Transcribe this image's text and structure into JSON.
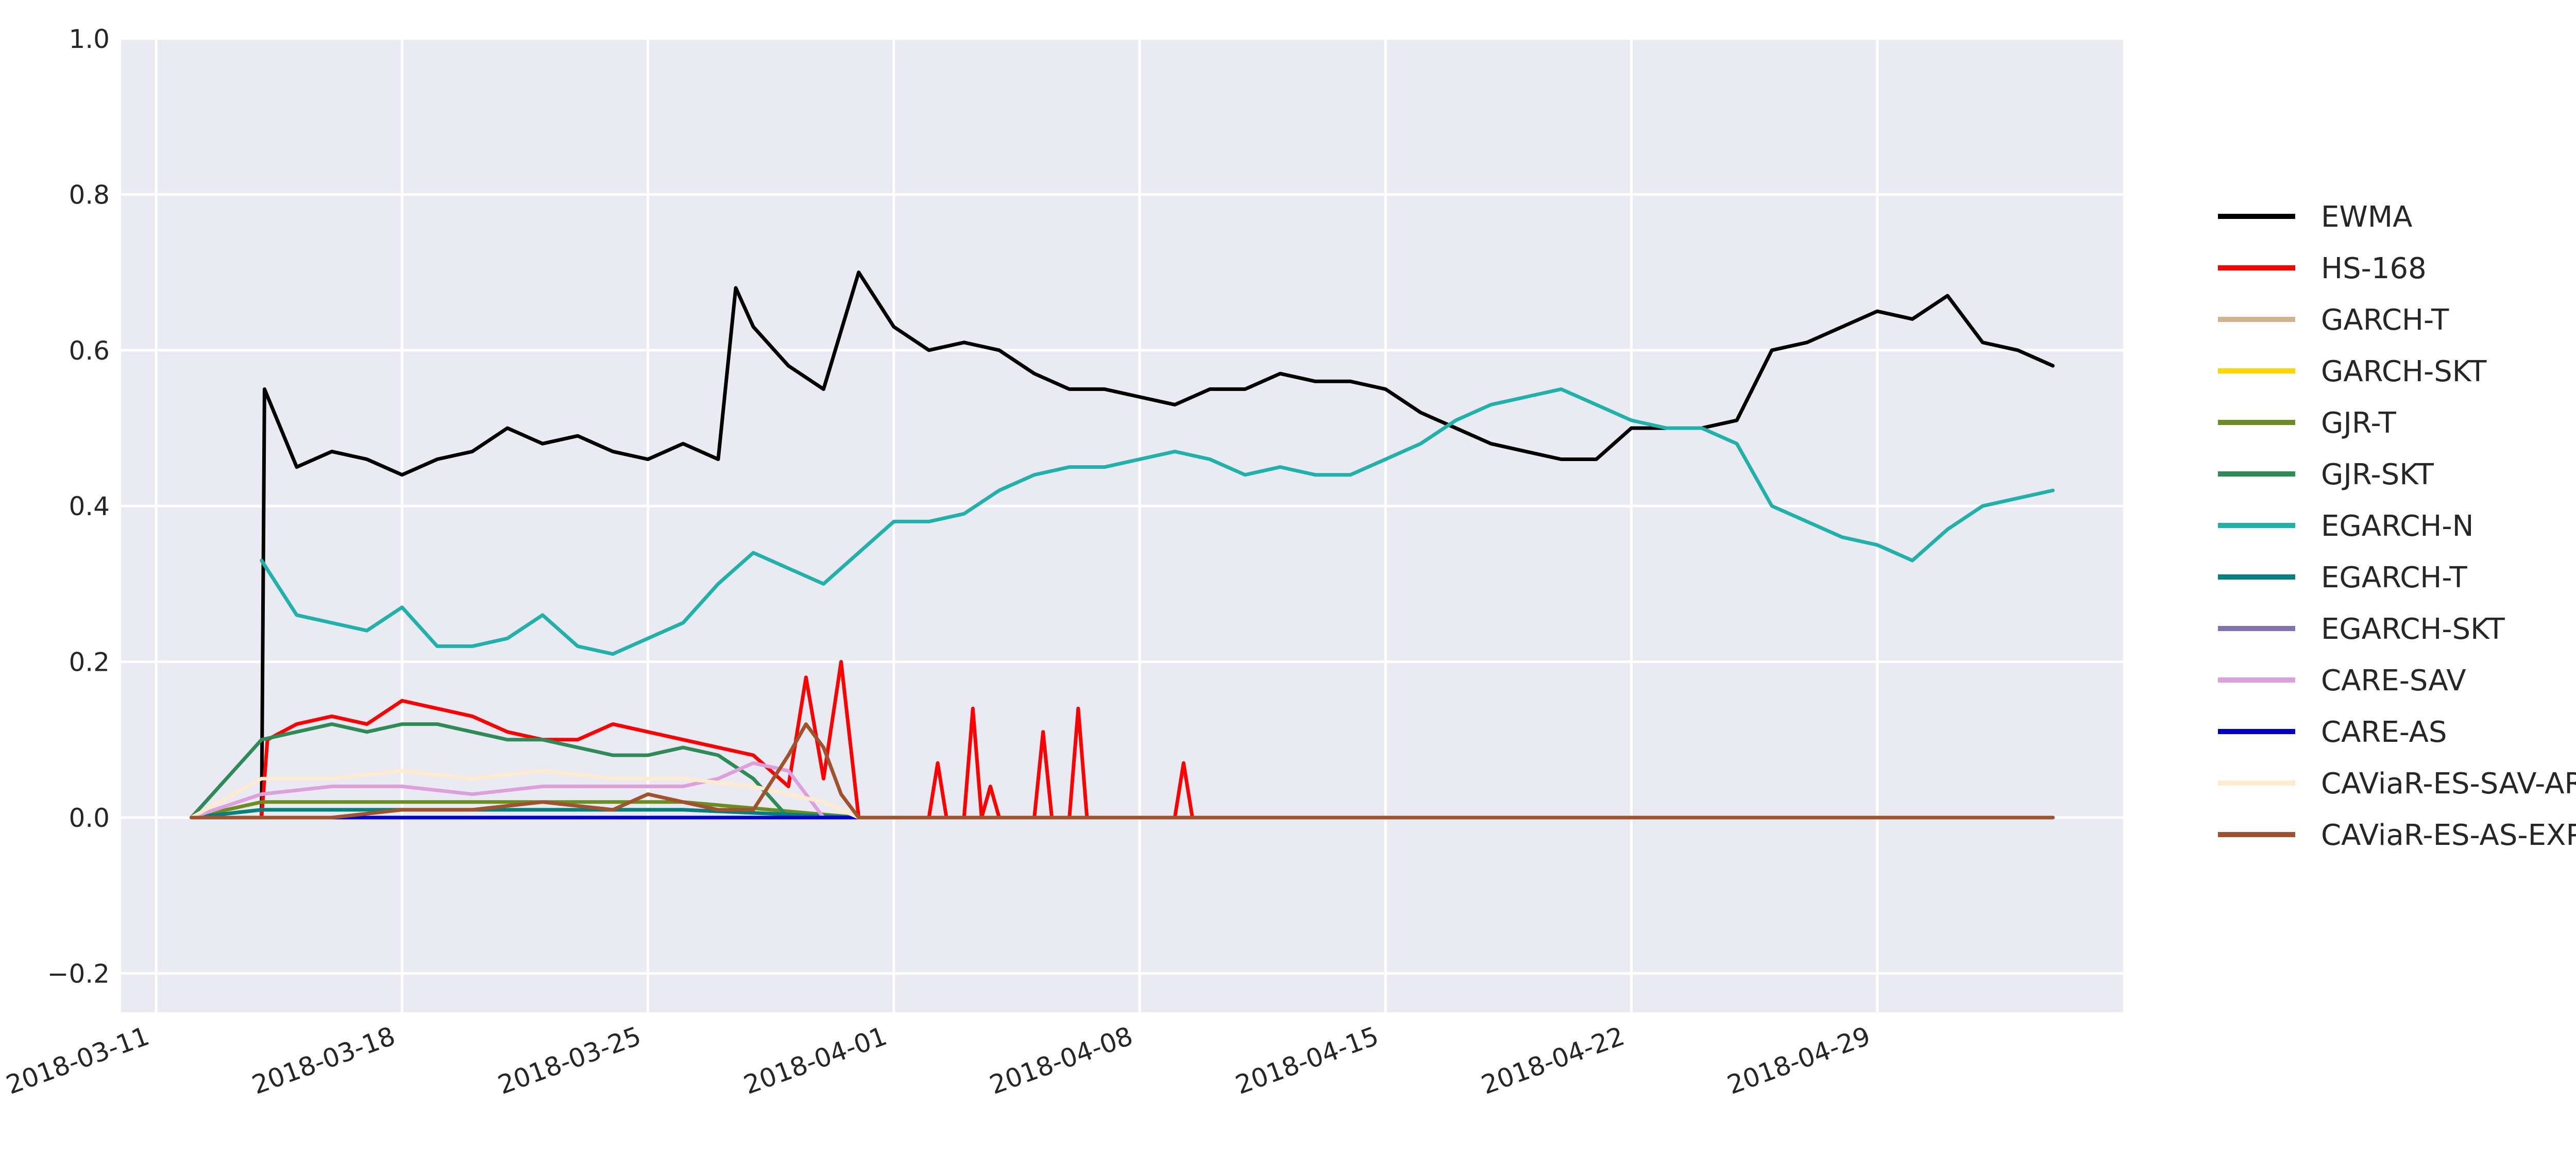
{
  "chart_data": {
    "type": "line",
    "title": "",
    "xlabel": "",
    "ylabel": "",
    "x_axis_type": "date",
    "xlim": [
      "2018-03-10",
      "2018-05-06"
    ],
    "ylim": [
      -0.25,
      1.0
    ],
    "x_ticks": [
      "2018-03-11",
      "2018-03-18",
      "2018-03-25",
      "2018-04-01",
      "2018-04-08",
      "2018-04-15",
      "2018-04-22",
      "2018-04-29"
    ],
    "y_ticks": [
      -0.2,
      0.0,
      0.2,
      0.4,
      0.6,
      0.8,
      1.0
    ],
    "y_tick_labels": [
      "−0.2",
      "0.0",
      "0.2",
      "0.4",
      "0.6",
      "0.8",
      "1.0"
    ],
    "grid": true,
    "background": "#eaeaf2",
    "legend_position": "right",
    "series": [
      {
        "name": "EWMA",
        "color": "#000000",
        "x": [
          "2018-03-12",
          "2018-03-14",
          "2018-03-14 02:00",
          "2018-03-15",
          "2018-03-16",
          "2018-03-17",
          "2018-03-18",
          "2018-03-19",
          "2018-03-20",
          "2018-03-21",
          "2018-03-22",
          "2018-03-23",
          "2018-03-24",
          "2018-03-25",
          "2018-03-26",
          "2018-03-27",
          "2018-03-27 12:00",
          "2018-03-28",
          "2018-03-29",
          "2018-03-30",
          "2018-03-31",
          "2018-04-01",
          "2018-04-02",
          "2018-04-03",
          "2018-04-04",
          "2018-04-05",
          "2018-04-06",
          "2018-04-07",
          "2018-04-08",
          "2018-04-09",
          "2018-04-10",
          "2018-04-11",
          "2018-04-12",
          "2018-04-13",
          "2018-04-14",
          "2018-04-15",
          "2018-04-16",
          "2018-04-17",
          "2018-04-18",
          "2018-04-19",
          "2018-04-20",
          "2018-04-21",
          "2018-04-22",
          "2018-04-23",
          "2018-04-24",
          "2018-04-25",
          "2018-04-26",
          "2018-04-27",
          "2018-04-28",
          "2018-04-29",
          "2018-04-30",
          "2018-05-01",
          "2018-05-02",
          "2018-05-03",
          "2018-05-04"
        ],
        "y": [
          0.0,
          0.0,
          0.55,
          0.45,
          0.47,
          0.46,
          0.44,
          0.46,
          0.47,
          0.5,
          0.48,
          0.49,
          0.47,
          0.46,
          0.48,
          0.46,
          0.68,
          0.63,
          0.58,
          0.55,
          0.7,
          0.63,
          0.6,
          0.61,
          0.6,
          0.57,
          0.55,
          0.55,
          0.54,
          0.53,
          0.55,
          0.55,
          0.57,
          0.56,
          0.56,
          0.55,
          0.52,
          0.5,
          0.48,
          0.47,
          0.46,
          0.46,
          0.5,
          0.5,
          0.5,
          0.51,
          0.6,
          0.61,
          0.63,
          0.65,
          0.64,
          0.67,
          0.61,
          0.6,
          0.58
        ]
      },
      {
        "name": "HS-168",
        "color": "#ff0000",
        "x": [
          "2018-03-12",
          "2018-03-14",
          "2018-03-14 04:00",
          "2018-03-15",
          "2018-03-16",
          "2018-03-17",
          "2018-03-18",
          "2018-03-19",
          "2018-03-20",
          "2018-03-21",
          "2018-03-22",
          "2018-03-23",
          "2018-03-24",
          "2018-03-25",
          "2018-03-26",
          "2018-03-27",
          "2018-03-28",
          "2018-03-29",
          "2018-03-29 12:00",
          "2018-03-30",
          "2018-03-30 12:00",
          "2018-03-31",
          "2018-04-02",
          "2018-04-02 06:00",
          "2018-04-02 12:00",
          "2018-04-03",
          "2018-04-03 06:00",
          "2018-04-03 12:00",
          "2018-04-03 18:00",
          "2018-04-04",
          "2018-04-04 12:00",
          "2018-04-05",
          "2018-04-05 06:00",
          "2018-04-05 12:00",
          "2018-04-06",
          "2018-04-06 06:00",
          "2018-04-06 12:00",
          "2018-04-09",
          "2018-04-09 06:00",
          "2018-04-09 12:00",
          "2018-05-04"
        ],
        "y": [
          0.0,
          0.0,
          0.1,
          0.12,
          0.13,
          0.12,
          0.15,
          0.14,
          0.13,
          0.11,
          0.1,
          0.1,
          0.12,
          0.11,
          0.1,
          0.09,
          0.08,
          0.04,
          0.18,
          0.05,
          0.2,
          0.0,
          0.0,
          0.07,
          0.0,
          0.0,
          0.14,
          0.0,
          0.04,
          0.0,
          0.0,
          0.0,
          0.11,
          0.0,
          0.0,
          0.14,
          0.0,
          0.0,
          0.07,
          0.0,
          0.0
        ]
      },
      {
        "name": "GARCH-T",
        "color": "#d2b48c",
        "x": [
          "2018-03-12",
          "2018-03-14",
          "2018-03-20",
          "2018-03-26",
          "2018-03-31",
          "2018-05-04"
        ],
        "y": [
          0.0,
          0.01,
          0.01,
          0.01,
          0.0,
          0.0
        ]
      },
      {
        "name": "GARCH-SKT",
        "color": "#ffd700",
        "x": [
          "2018-03-12",
          "2018-03-14",
          "2018-03-20",
          "2018-03-26",
          "2018-03-31",
          "2018-05-04"
        ],
        "y": [
          0.0,
          0.01,
          0.01,
          0.01,
          0.0,
          0.0
        ]
      },
      {
        "name": "GJR-T",
        "color": "#6b8e23",
        "x": [
          "2018-03-12",
          "2018-03-14",
          "2018-03-20",
          "2018-03-26",
          "2018-03-31",
          "2018-05-04"
        ],
        "y": [
          0.0,
          0.02,
          0.02,
          0.02,
          0.0,
          0.0
        ]
      },
      {
        "name": "GJR-SKT",
        "color": "#2e8b57",
        "x": [
          "2018-03-12",
          "2018-03-14",
          "2018-03-15",
          "2018-03-16",
          "2018-03-17",
          "2018-03-18",
          "2018-03-19",
          "2018-03-20",
          "2018-03-21",
          "2018-03-22",
          "2018-03-23",
          "2018-03-24",
          "2018-03-25",
          "2018-03-26",
          "2018-03-27",
          "2018-03-28",
          "2018-03-29",
          "2018-05-04"
        ],
        "y": [
          0.0,
          0.1,
          0.11,
          0.12,
          0.11,
          0.12,
          0.12,
          0.11,
          0.1,
          0.1,
          0.09,
          0.08,
          0.08,
          0.09,
          0.08,
          0.05,
          0.0,
          0.0
        ]
      },
      {
        "name": "EGARCH-N",
        "color": "#20b2aa",
        "x": [
          "2018-03-14",
          "2018-03-15",
          "2018-03-16",
          "2018-03-17",
          "2018-03-18",
          "2018-03-19",
          "2018-03-20",
          "2018-03-21",
          "2018-03-22",
          "2018-03-23",
          "2018-03-24",
          "2018-03-25",
          "2018-03-26",
          "2018-03-27",
          "2018-03-28",
          "2018-03-29",
          "2018-03-30",
          "2018-03-31",
          "2018-04-01",
          "2018-04-02",
          "2018-04-03",
          "2018-04-04",
          "2018-04-05",
          "2018-04-06",
          "2018-04-07",
          "2018-04-08",
          "2018-04-09",
          "2018-04-10",
          "2018-04-11",
          "2018-04-12",
          "2018-04-13",
          "2018-04-14",
          "2018-04-15",
          "2018-04-16",
          "2018-04-17",
          "2018-04-18",
          "2018-04-19",
          "2018-04-20",
          "2018-04-21",
          "2018-04-22",
          "2018-04-23",
          "2018-04-24",
          "2018-04-25",
          "2018-04-26",
          "2018-04-27",
          "2018-04-28",
          "2018-04-29",
          "2018-04-30",
          "2018-05-01",
          "2018-05-02",
          "2018-05-03",
          "2018-05-04"
        ],
        "y": [
          0.33,
          0.26,
          0.25,
          0.24,
          0.27,
          0.22,
          0.22,
          0.23,
          0.26,
          0.22,
          0.21,
          0.23,
          0.25,
          0.3,
          0.34,
          0.32,
          0.3,
          0.34,
          0.38,
          0.38,
          0.39,
          0.42,
          0.44,
          0.45,
          0.45,
          0.46,
          0.47,
          0.46,
          0.44,
          0.45,
          0.44,
          0.44,
          0.46,
          0.48,
          0.51,
          0.53,
          0.54,
          0.55,
          0.53,
          0.51,
          0.5,
          0.5,
          0.48,
          0.4,
          0.38,
          0.36,
          0.35,
          0.33,
          0.37,
          0.4,
          0.41,
          0.42
        ]
      },
      {
        "name": "EGARCH-T",
        "color": "#008080",
        "x": [
          "2018-03-12",
          "2018-03-14",
          "2018-03-20",
          "2018-03-26",
          "2018-03-31",
          "2018-05-04"
        ],
        "y": [
          0.0,
          0.01,
          0.01,
          0.01,
          0.0,
          0.0
        ]
      },
      {
        "name": "EGARCH-SKT",
        "color": "#8172b2",
        "x": [
          "2018-03-12",
          "2018-03-14",
          "2018-03-20",
          "2018-03-26",
          "2018-03-31",
          "2018-05-04"
        ],
        "y": [
          0.0,
          0.0,
          0.0,
          0.0,
          0.0,
          0.0
        ]
      },
      {
        "name": "CARE-SAV",
        "color": "#dda0dd",
        "x": [
          "2018-03-12",
          "2018-03-14",
          "2018-03-16",
          "2018-03-18",
          "2018-03-20",
          "2018-03-22",
          "2018-03-24",
          "2018-03-26",
          "2018-03-27",
          "2018-03-28",
          "2018-03-29",
          "2018-03-30",
          "2018-03-31",
          "2018-05-04"
        ],
        "y": [
          0.0,
          0.03,
          0.04,
          0.04,
          0.03,
          0.04,
          0.04,
          0.04,
          0.05,
          0.07,
          0.06,
          0.0,
          0.0,
          0.0
        ]
      },
      {
        "name": "CARE-AS",
        "color": "#0000cd",
        "x": [
          "2018-03-12",
          "2018-03-14",
          "2018-03-20",
          "2018-03-24",
          "2018-03-25",
          "2018-03-26",
          "2018-05-04"
        ],
        "y": [
          0.0,
          0.0,
          0.0,
          0.0,
          0.0,
          0.0,
          0.0
        ]
      },
      {
        "name": "CAViaR-ES-SAV-AR",
        "color": "#ffebcd",
        "x": [
          "2018-03-12",
          "2018-03-14",
          "2018-03-16",
          "2018-03-18",
          "2018-03-20",
          "2018-03-22",
          "2018-03-24",
          "2018-03-26",
          "2018-03-28",
          "2018-03-30",
          "2018-03-31",
          "2018-05-04"
        ],
        "y": [
          0.0,
          0.05,
          0.05,
          0.06,
          0.05,
          0.06,
          0.05,
          0.05,
          0.04,
          0.02,
          0.0,
          0.0
        ]
      },
      {
        "name": "CAViaR-ES-AS-EXP",
        "color": "#a0522d",
        "x": [
          "2018-03-12",
          "2018-03-14",
          "2018-03-16",
          "2018-03-18",
          "2018-03-20",
          "2018-03-22",
          "2018-03-24",
          "2018-03-25",
          "2018-03-26",
          "2018-03-27",
          "2018-03-28",
          "2018-03-29",
          "2018-03-29 12:00",
          "2018-03-30",
          "2018-03-30 12:00",
          "2018-03-31",
          "2018-05-04"
        ],
        "y": [
          0.0,
          0.0,
          0.0,
          0.01,
          0.01,
          0.02,
          0.01,
          0.03,
          0.02,
          0.01,
          0.01,
          0.08,
          0.12,
          0.09,
          0.03,
          0.0,
          0.0
        ]
      }
    ]
  }
}
